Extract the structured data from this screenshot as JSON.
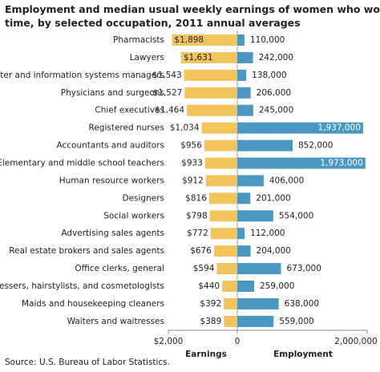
{
  "chart_data": {
    "type": "bar",
    "title": "Employment and median usual weekly earnings of women who worked full time, by selected occupation, 2011 annual averages",
    "categories": [
      "Pharmacists",
      "Lawyers",
      "Computer and information systems managers",
      "Physicians and surgeons",
      "Chief executives",
      "Registered nurses",
      "Accountants and auditors",
      "Elementary and middle school teachers",
      "Human resource workers",
      "Designers",
      "Social workers",
      "Advertising sales agents",
      "Real estate brokers and sales agents",
      "Office clerks, general",
      "Hairdressers, hairstylists, and cosmetologists",
      "Maids and housekeeping cleaners",
      "Waiters and waitresses"
    ],
    "series": [
      {
        "name": "Earnings",
        "color": "#f2c55c",
        "values": [
          1898,
          1631,
          1543,
          1527,
          1464,
          1034,
          956,
          933,
          912,
          816,
          798,
          772,
          676,
          594,
          440,
          392,
          389
        ],
        "value_labels": [
          "$1,898",
          "$1,631",
          "$1,543",
          "$1,527",
          "$1,464",
          "$1,034",
          "$956",
          "$933",
          "$912",
          "$816",
          "$798",
          "$772",
          "$676",
          "$594",
          "$440",
          "$392",
          "$389"
        ]
      },
      {
        "name": "Employment",
        "color": "#4a97c2",
        "axis": "x2",
        "values": [
          110000,
          242000,
          138000,
          206000,
          245000,
          1937000,
          852000,
          1973000,
          406000,
          201000,
          554000,
          112000,
          204000,
          673000,
          259000,
          638000,
          559000
        ],
        "value_labels": [
          "110,000",
          "242,000",
          "138,000",
          "206,000",
          "245,000",
          "1,937,000",
          "852,000",
          "1,973,000",
          "406,000",
          "201,000",
          "554,000",
          "112,000",
          "204,000",
          "673,000",
          "259,000",
          "638,000",
          "559,000"
        ]
      }
    ],
    "xlim": [
      0,
      2000
    ],
    "xticks": [
      {
        "value": 2000,
        "label": "$2,000"
      },
      0
    ],
    "x2lim": [
      0,
      2000000
    ],
    "x2ticks": [
      {
        "value": 2000000,
        "label": "2,000,000"
      }
    ],
    "source": "Source: U.S. Bureau of Labor Statistics."
  }
}
